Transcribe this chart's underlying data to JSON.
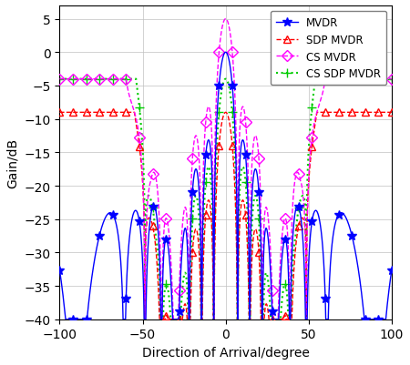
{
  "xlabel": "Direction of Arrival/degree",
  "ylabel": "Gain/dB",
  "xlim": [
    -100,
    100
  ],
  "ylim": [
    -40,
    7
  ],
  "yticks": [
    -40,
    -35,
    -30,
    -25,
    -20,
    -15,
    -10,
    -5,
    0,
    5
  ],
  "xticks": [
    -100,
    -50,
    0,
    50,
    100
  ],
  "colors": {
    "MVDR": "#0000FF",
    "SDP_MVDR": "#FF0000",
    "CS_MVDR": "#FF00FF",
    "CS_SDP_MVDR": "#00CC00"
  },
  "legend": [
    "MVDR",
    "SDP MVDR",
    "CS MVDR",
    "CS SDP MVDR"
  ],
  "grid_color": "#c0c0c0"
}
